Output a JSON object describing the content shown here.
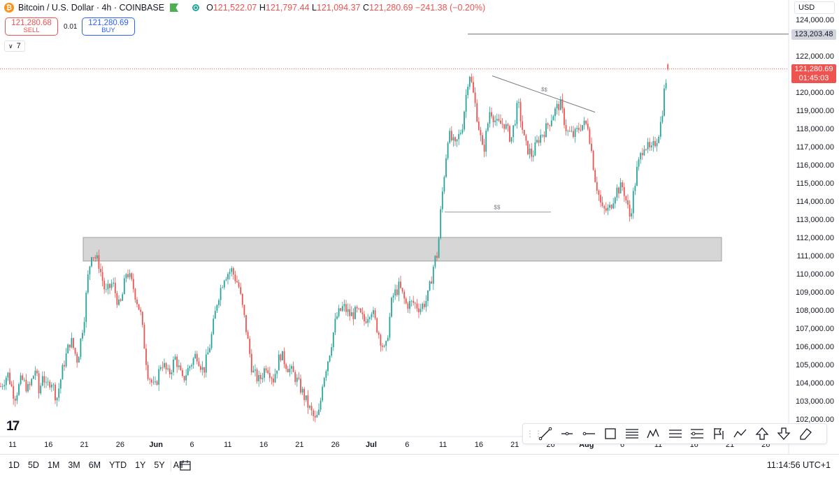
{
  "legend": {
    "symbol_icon": "bitcoin-icon",
    "title": "Bitcoin / U.S. Dollar · 4h · COINBASE",
    "o_label": "O",
    "o": "121,522.07",
    "h_label": "H",
    "h": "121,797.44",
    "l_label": "L",
    "l": "121,094.37",
    "c_label": "C",
    "c": "121,280.69",
    "change": "−241.38 (−0.20%)"
  },
  "trade": {
    "sell_price": "121,280.68",
    "sell_label": "SELL",
    "spread": "0.01",
    "buy_price": "121,280.69",
    "buy_label": "BUY"
  },
  "indicators_toggle": "7",
  "currency": "USD",
  "price_axis": {
    "ticks": [
      "124,000.00",
      "122,000.00",
      "121,000.00",
      "120,000.00",
      "119,000.00",
      "118,000.00",
      "117,000.00",
      "116,000.00",
      "115,000.00",
      "114,000.00",
      "113,000.00",
      "112,000.00",
      "111,000.00",
      "110,000.00",
      "109,000.00",
      "108,000.00",
      "107,000.00",
      "106,000.00",
      "105,000.00",
      "104,000.00",
      "103,000.00",
      "102,000.00"
    ],
    "tick_values": [
      124000,
      122000,
      121000,
      120000,
      119000,
      118000,
      117000,
      116000,
      115000,
      114000,
      113000,
      112000,
      111000,
      110000,
      109000,
      108000,
      107000,
      106000,
      105000,
      104000,
      103000,
      102000
    ],
    "high_tag": "123,203.48",
    "high_value": 123203.48,
    "last_price": "121,280.69",
    "last_value": 121280.69,
    "countdown": "01:45:03"
  },
  "time_axis": {
    "labels": [
      "11",
      "16",
      "21",
      "26",
      "Jun",
      "6",
      "11",
      "16",
      "21",
      "26",
      "Jul",
      "6",
      "11",
      "16",
      "21",
      "26",
      "Aug",
      "6",
      "11",
      "16",
      "21",
      "26"
    ]
  },
  "annotations": {
    "zone_top": 112000,
    "zone_bottom": 110700,
    "liquidity_label_1": "$$",
    "liquidity_label_2": "$$",
    "liquidity_low": 113400,
    "trendline_start": 120900,
    "trendline_end": 118900
  },
  "toolbar": {
    "tools": [
      "trend-line-icon",
      "horizontal-ray-icon",
      "horizontal-line-icon",
      "rectangle-icon",
      "fib-retracement-icon",
      "elliott-wave-icon",
      "long-position-icon",
      "flag-icon",
      "path-icon",
      "arrow-up-icon",
      "arrow-down-icon",
      "eraser-icon"
    ]
  },
  "bottom": {
    "ranges": [
      "1D",
      "5D",
      "1M",
      "3M",
      "6M",
      "YTD",
      "1Y",
      "5Y",
      "All"
    ],
    "clock": "11:14:56 UTC+1"
  },
  "chart_data": {
    "type": "candlestick",
    "title": "Bitcoin / U.S. Dollar · 4h · COINBASE",
    "xlabel": "",
    "ylabel": "",
    "ylim": [
      101500,
      124400
    ],
    "x_ticks": [
      "11",
      "16",
      "21",
      "26",
      "Jun",
      "6",
      "11",
      "16",
      "21",
      "26",
      "Jul",
      "6",
      "11",
      "16",
      "21",
      "26",
      "Aug",
      "6",
      "11",
      "16",
      "21",
      "26"
    ],
    "series_colors": {
      "up": "#26a69a",
      "down": "#ef5350"
    },
    "anchors": {
      "x": [
        0,
        10,
        20,
        30,
        40,
        50,
        55,
        60,
        65,
        72,
        80,
        90,
        100,
        110,
        120,
        124,
        130,
        140,
        150,
        160,
        170,
        175,
        180,
        190,
        200,
        205,
        210,
        220,
        230,
        240,
        250,
        260,
        270,
        280,
        290,
        300,
        310,
        320,
        330,
        340,
        350,
        360,
        370,
        380,
        390,
        400,
        410,
        420,
        430,
        440,
        450,
        456,
        460,
        470,
        480,
        490,
        500,
        510,
        520,
        530,
        540,
        550,
        560,
        570,
        580,
        590,
        600,
        610,
        615,
        620,
        625,
        630,
        640,
        650,
        660,
        670,
        680,
        690,
        700,
        710,
        720,
        730,
        740,
        750,
        760,
        770,
        780,
        790,
        800,
        810,
        820,
        830,
        840,
        850,
        860,
        870,
        880,
        890,
        900,
        910,
        920,
        930,
        940,
        945,
        950,
        955
      ],
      "close": [
        103800,
        104500,
        103200,
        104200,
        103600,
        104800,
        103300,
        104600,
        103700,
        104200,
        103100,
        105000,
        106400,
        105200,
        107800,
        109600,
        111200,
        110600,
        108900,
        109500,
        108100,
        109000,
        110200,
        109200,
        107800,
        106200,
        104600,
        103600,
        105200,
        104400,
        105400,
        104100,
        104900,
        105600,
        104600,
        106200,
        108600,
        109900,
        110200,
        109400,
        107200,
        104600,
        104100,
        105000,
        104200,
        105600,
        104900,
        104400,
        103600,
        102700,
        101900,
        102400,
        104000,
        105600,
        107600,
        108200,
        107700,
        107900,
        107400,
        108100,
        106800,
        105600,
        108700,
        109300,
        108300,
        108400,
        108100,
        108600,
        109500,
        110700,
        111100,
        113800,
        117700,
        117000,
        118100,
        121200,
        119000,
        116600,
        119100,
        118200,
        118300,
        117400,
        119400,
        117100,
        116500,
        117500,
        118000,
        118800,
        119400,
        117800,
        117600,
        118200,
        118200,
        115300,
        113500,
        113500,
        114600,
        114800,
        113100,
        115700,
        117200,
        116700,
        117600,
        118500,
        120400,
        121280.69
      ]
    }
  }
}
